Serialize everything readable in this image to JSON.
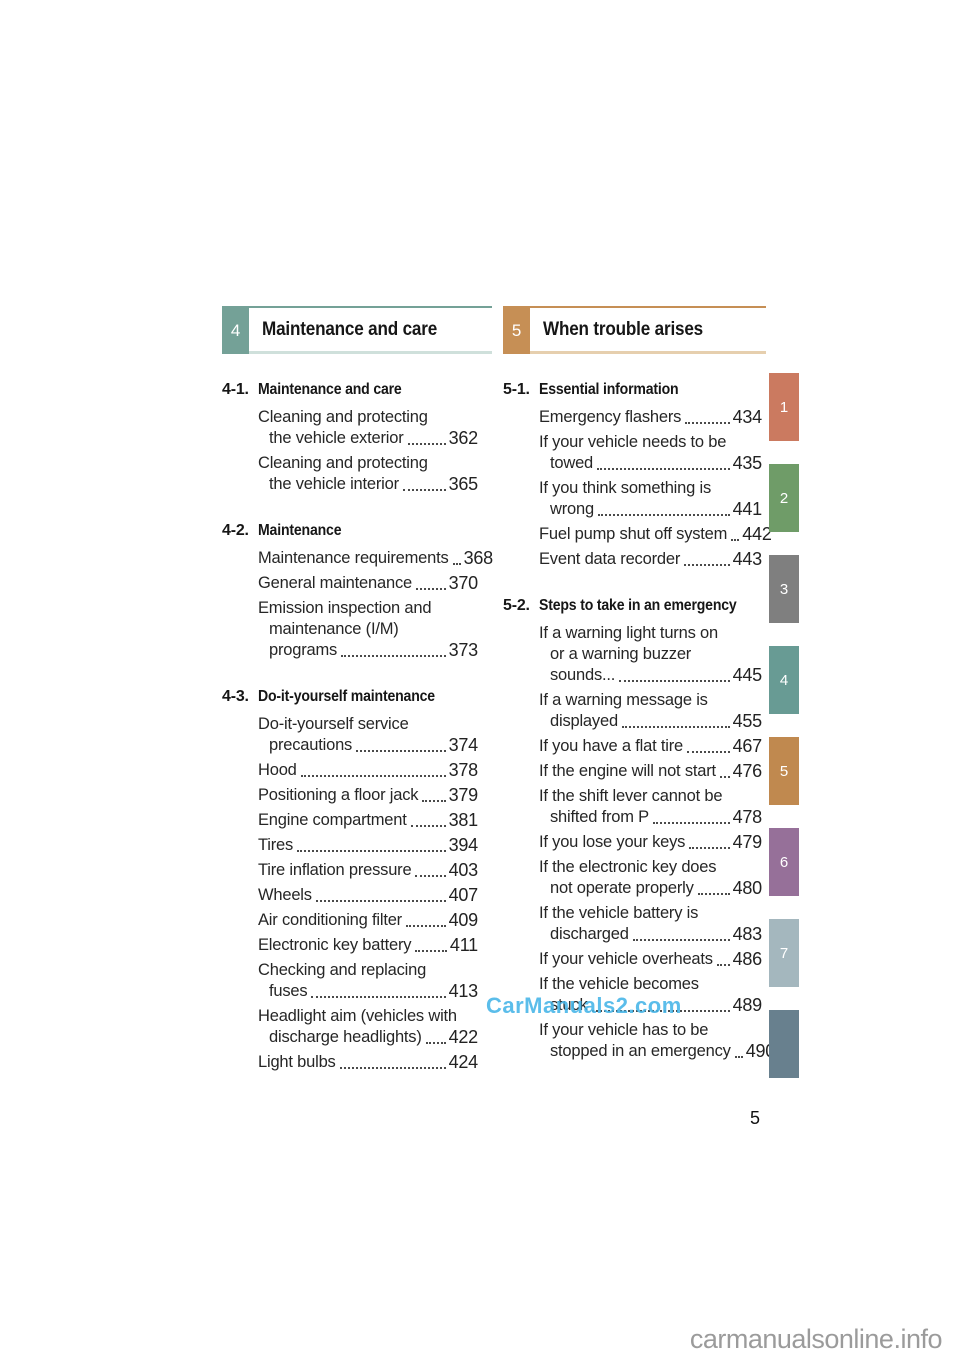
{
  "footer": {
    "page_number": "5"
  },
  "watermarks": {
    "center_text": "CarManuals2.com",
    "center_color": "#45b5e8",
    "bottom_text": "carmanualsonline.info",
    "bottom_color": "#9b9b9b"
  },
  "side_tabs": [
    {
      "label": "1",
      "color": "#cb7a60"
    },
    {
      "label": "2",
      "color": "#6f9c68"
    },
    {
      "label": "3",
      "color": "#7f7f7f"
    },
    {
      "label": "4",
      "color": "#689b94"
    },
    {
      "label": "5",
      "color": "#c0894f"
    },
    {
      "label": "6",
      "color": "#967099"
    },
    {
      "label": "7",
      "color": "#a4b7be"
    },
    {
      "label": "",
      "color": "#68808e"
    }
  ],
  "columns": [
    {
      "chapter_number": "4",
      "chapter_title": "Maintenance and care",
      "accent": "#74a197",
      "accent_light": "#cfe0db",
      "sections": [
        {
          "number": "4-1.",
          "title": "Maintenance and care",
          "entries": [
            {
              "head": [
                "Cleaning and protecting"
              ],
              "tail": "the vehicle exterior",
              "page": "362"
            },
            {
              "head": [
                "Cleaning and protecting"
              ],
              "tail": "the vehicle interior",
              "page": "365"
            }
          ]
        },
        {
          "number": "4-2.",
          "title": "Maintenance",
          "entries": [
            {
              "head": [],
              "tail": "Maintenance requirements",
              "page": "368"
            },
            {
              "head": [],
              "tail": "General maintenance",
              "page": "370"
            },
            {
              "head": [
                "Emission inspection and",
                "maintenance (I/M)"
              ],
              "tail": "programs",
              "page": "373"
            }
          ]
        },
        {
          "number": "4-3.",
          "title": "Do-it-yourself maintenance",
          "entries": [
            {
              "head": [
                "Do-it-yourself service"
              ],
              "tail": "precautions",
              "page": "374"
            },
            {
              "head": [],
              "tail": "Hood",
              "page": "378"
            },
            {
              "head": [],
              "tail": "Positioning a floor jack",
              "page": "379"
            },
            {
              "head": [],
              "tail": "Engine compartment",
              "page": "381"
            },
            {
              "head": [],
              "tail": "Tires",
              "page": "394"
            },
            {
              "head": [],
              "tail": "Tire inflation pressure",
              "page": "403"
            },
            {
              "head": [],
              "tail": "Wheels",
              "page": "407"
            },
            {
              "head": [],
              "tail": "Air conditioning filter",
              "page": "409"
            },
            {
              "head": [],
              "tail": "Electronic key battery",
              "page": "411"
            },
            {
              "head": [
                "Checking and replacing"
              ],
              "tail": "fuses",
              "page": "413"
            },
            {
              "head": [
                "Headlight aim (vehicles with"
              ],
              "tail": "discharge headlights)",
              "page": "422"
            },
            {
              "head": [],
              "tail": "Light bulbs",
              "page": "424"
            }
          ]
        }
      ]
    },
    {
      "chapter_number": "5",
      "chapter_title": "When trouble arises",
      "accent": "#c68f55",
      "accent_light": "#e6cfae",
      "sections": [
        {
          "number": "5-1.",
          "title": "Essential information",
          "entries": [
            {
              "head": [],
              "tail": "Emergency flashers",
              "page": "434"
            },
            {
              "head": [
                "If your vehicle needs to be"
              ],
              "tail": "towed",
              "page": "435"
            },
            {
              "head": [
                "If you think something is"
              ],
              "tail": "wrong",
              "page": "441"
            },
            {
              "head": [],
              "tail": "Fuel pump shut off system",
              "page": "442"
            },
            {
              "head": [],
              "tail": "Event data recorder",
              "page": "443"
            }
          ]
        },
        {
          "number": "5-2.",
          "title": "Steps to take in an emergency",
          "entries": [
            {
              "head": [
                "If a warning light turns on",
                "or a warning buzzer"
              ],
              "tail": "sounds...",
              "page": "445"
            },
            {
              "head": [
                "If a warning message is"
              ],
              "tail": "displayed",
              "page": "455"
            },
            {
              "head": [],
              "tail": "If you have a flat tire",
              "page": "467"
            },
            {
              "head": [],
              "tail": "If the engine will not start",
              "page": "476"
            },
            {
              "head": [
                "If the shift lever cannot be"
              ],
              "tail": "shifted from P",
              "page": "478"
            },
            {
              "head": [],
              "tail": "If you lose your keys",
              "page": "479"
            },
            {
              "head": [
                "If the electronic key does"
              ],
              "tail": "not operate properly",
              "page": "480"
            },
            {
              "head": [
                "If the vehicle battery is"
              ],
              "tail": "discharged",
              "page": "483"
            },
            {
              "head": [],
              "tail": "If your vehicle overheats",
              "page": "486"
            },
            {
              "head": [
                "If the vehicle becomes"
              ],
              "tail": "stuck",
              "page": "489"
            },
            {
              "head": [
                "If your vehicle has to be"
              ],
              "tail": "stopped in an emergency",
              "page": "490"
            }
          ]
        }
      ]
    }
  ]
}
